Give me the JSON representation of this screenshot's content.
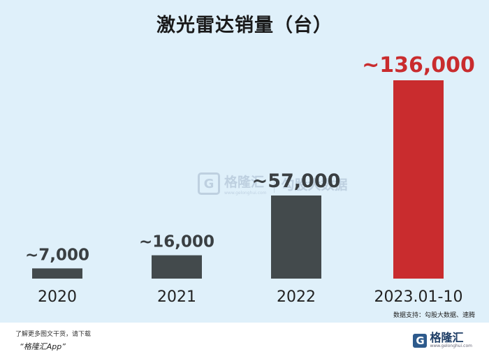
{
  "chart_data": {
    "type": "bar",
    "title": "激光雷达销量（台）",
    "categories": [
      "2020",
      "2021",
      "2022",
      "2023.01-10"
    ],
    "values": [
      7000,
      16000,
      57000,
      136000
    ],
    "value_labels": [
      "~7,000",
      "~16,000",
      "~57,000",
      "~136,000"
    ],
    "colors": [
      "#434a4c",
      "#434a4c",
      "#434a4c",
      "#c92c2e"
    ],
    "label_colors": [
      "#3a3f42",
      "#3a3f42",
      "#3a3f42",
      "#c92c2e"
    ],
    "ylim": [
      0,
      136000
    ],
    "grid": false,
    "legend": "none"
  },
  "source": "数据支持：勾股大数据、速腾",
  "footer": {
    "line1": "了解更多图文干货，请下载",
    "line2": "“格隆汇App”"
  },
  "brand": {
    "mark": "G",
    "name": "格隆汇",
    "sub": "www.gelonghui.com"
  },
  "watermark": {
    "mark": "G",
    "name": "格隆汇",
    "sub": "www.gelonghui.com",
    "right_text": "勾股大数据"
  }
}
